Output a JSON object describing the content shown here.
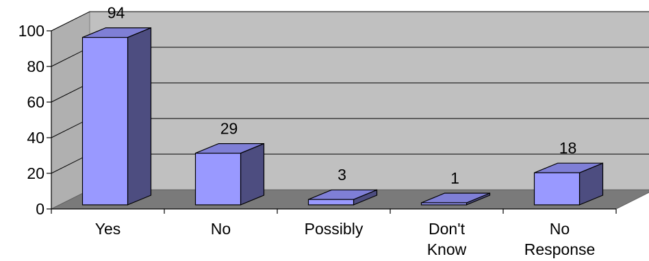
{
  "chart_data": {
    "type": "bar",
    "title": "",
    "xlabel": "",
    "ylabel": "",
    "categories": [
      [
        "Yes"
      ],
      [
        "No"
      ],
      [
        "Possibly"
      ],
      [
        "Don't",
        "Know"
      ],
      [
        "No",
        "Response"
      ]
    ],
    "values": [
      94,
      29,
      3,
      1,
      18
    ],
    "data_labels": [
      "94",
      "29",
      "3",
      "1",
      "18"
    ],
    "ylim": [
      0,
      100
    ],
    "yticks": [
      0,
      20,
      40,
      60,
      80,
      100
    ],
    "ytick_labels": [
      "0",
      "20",
      "40",
      "60",
      "80",
      "100"
    ],
    "grid": true,
    "legend": "none",
    "colors": {
      "bar_front": "#9999ff",
      "bar_side": "#4d4d80",
      "bar_top": "#7f7fd6",
      "back_wall": "#c0c0c0",
      "side_wall": "#b0b0b0",
      "floor": "#7a7a7a",
      "gridline": "#000000"
    }
  }
}
